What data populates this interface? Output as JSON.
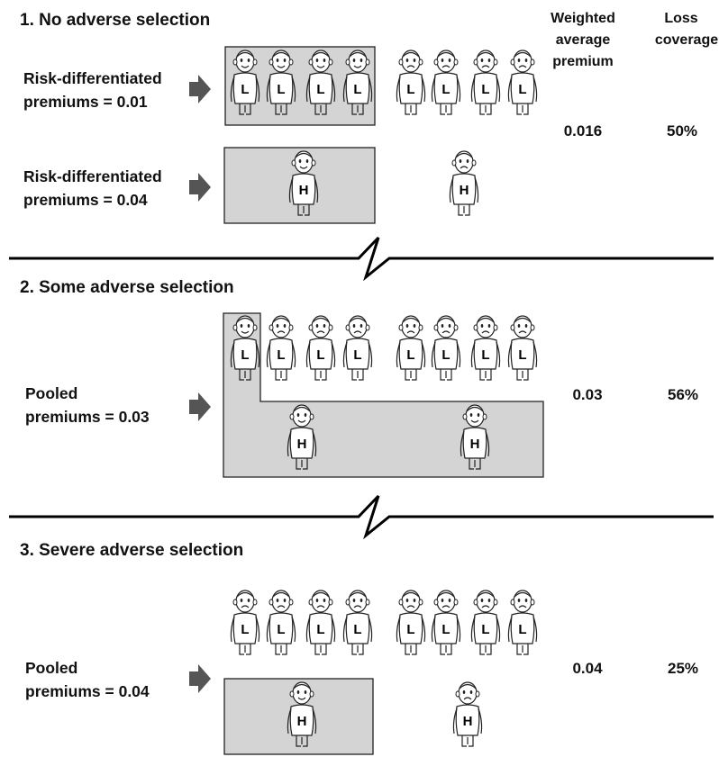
{
  "headers": {
    "weighted_average_premium": [
      "Weighted",
      "average",
      "premium"
    ],
    "loss_coverage": [
      "Loss",
      "coverage"
    ]
  },
  "sections": [
    {
      "title": "1. No adverse selection",
      "rows": [
        {
          "label": [
            "Risk-differentiated",
            "premiums = 0.01"
          ]
        },
        {
          "label": [
            "Risk-differentiated",
            "premiums = 0.04"
          ]
        }
      ],
      "weighted_average_premium": "0.016",
      "loss_coverage": "50%"
    },
    {
      "title": "2. Some adverse selection",
      "rows": [
        {
          "label": [
            "Pooled",
            "premiums = 0.03"
          ]
        }
      ],
      "weighted_average_premium": "0.03",
      "loss_coverage": "56%"
    },
    {
      "title": "3. Severe adverse selection",
      "rows": [
        {
          "label": [
            "Pooled",
            "premiums = 0.04"
          ]
        }
      ],
      "weighted_average_premium": "0.04",
      "loss_coverage": "25%"
    }
  ],
  "figures": {
    "low_risk_letter": "L",
    "high_risk_letter": "H"
  },
  "colors": {
    "insured_box_fill": "#d4d4d4",
    "arrow": "#555555",
    "outline": "#222222"
  },
  "mood": {
    "insured": "happy",
    "uninsured": "sad"
  }
}
